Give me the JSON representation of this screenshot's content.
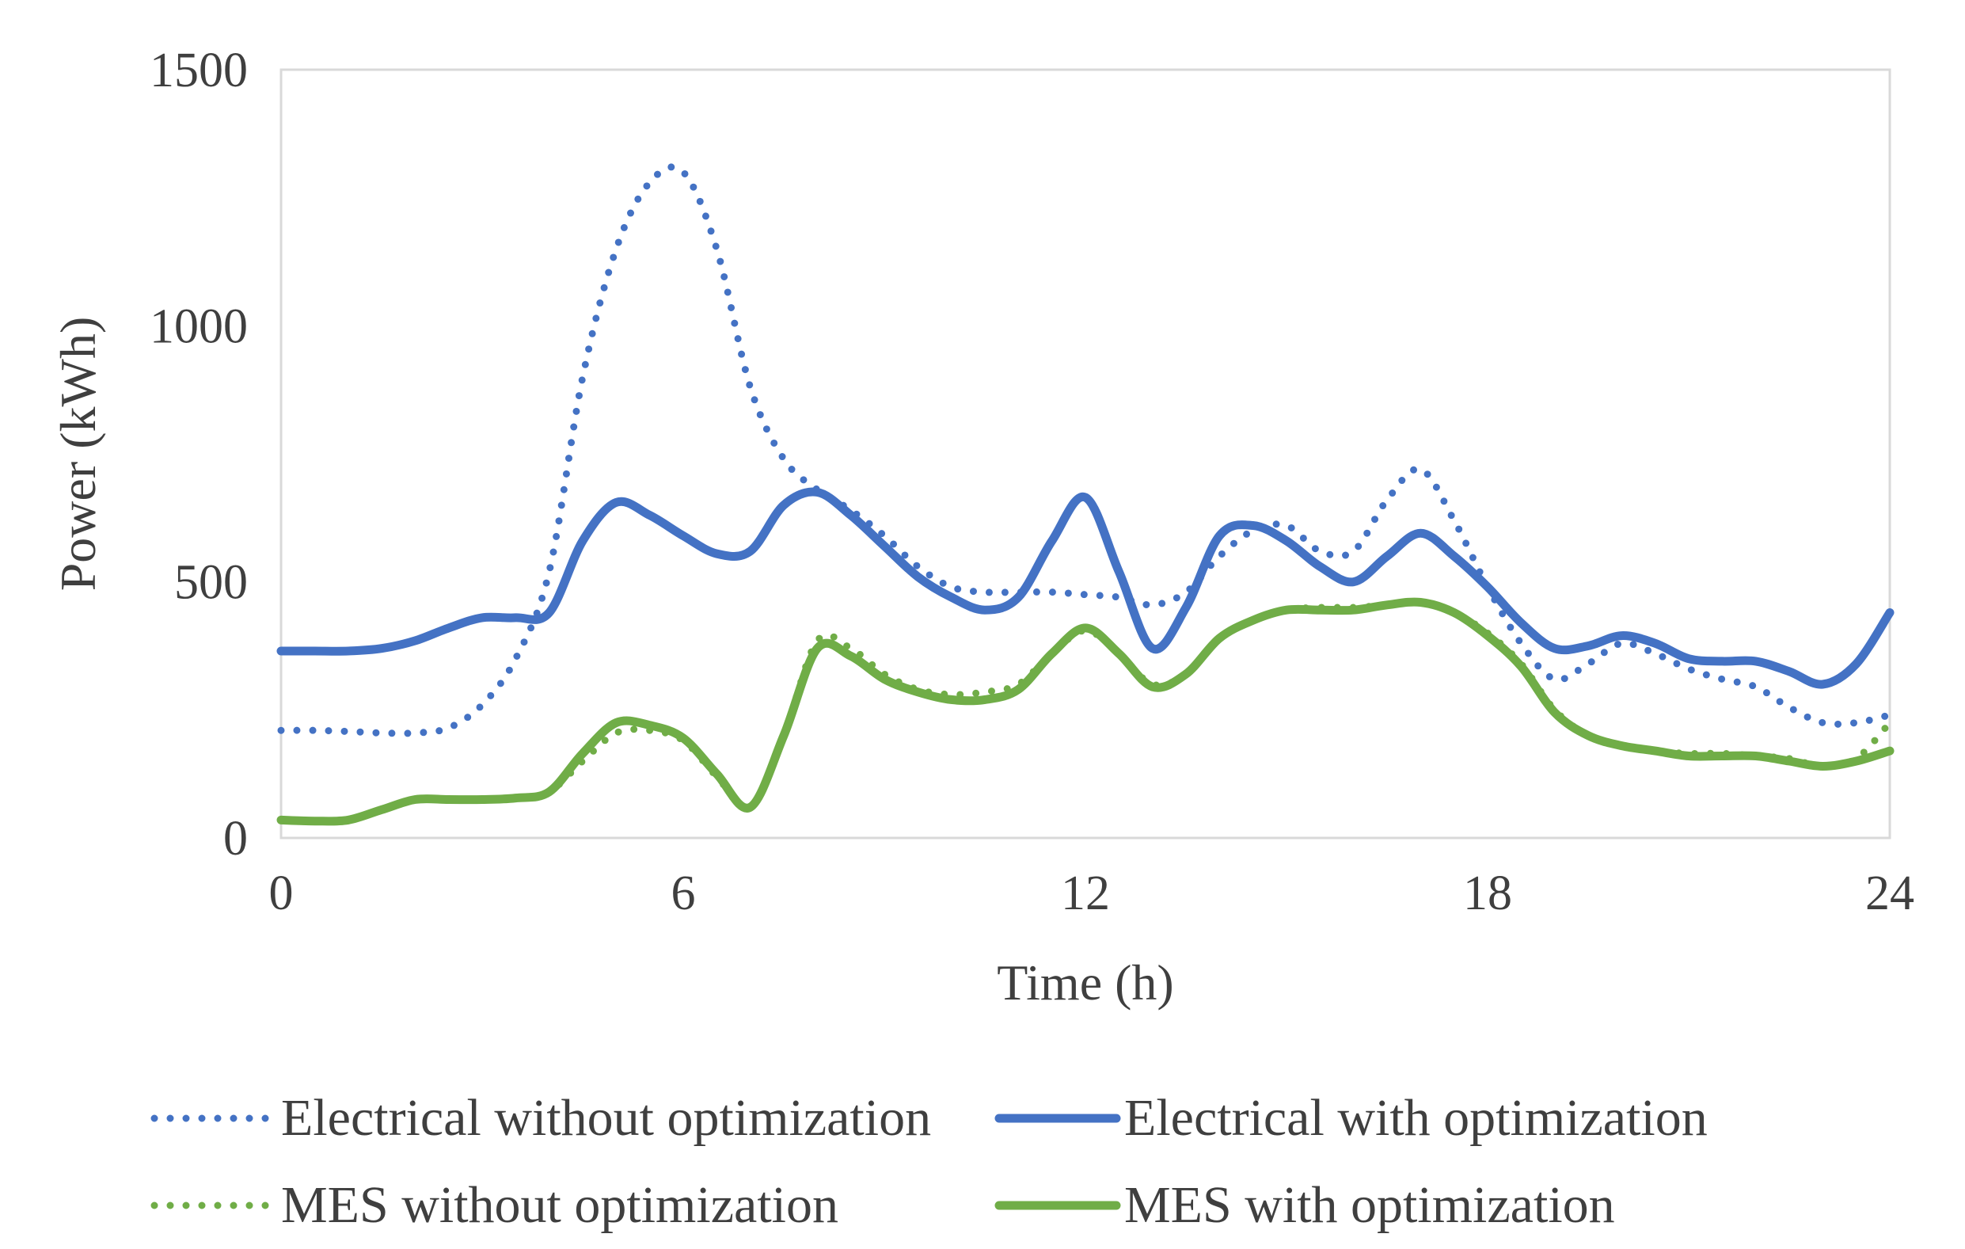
{
  "chart_data": {
    "type": "line",
    "title": "",
    "xlabel": "Time (h)",
    "ylabel": "Power (kWh)",
    "xlim": [
      0,
      24
    ],
    "ylim": [
      0,
      1500
    ],
    "xticks": [
      0,
      6,
      12,
      18,
      24
    ],
    "yticks": [
      0,
      500,
      1000,
      1500
    ],
    "grid": false,
    "legend_position": "bottom",
    "colors": {
      "electrical": "#4472c4",
      "mes": "#70ad47",
      "text": "#3f3f3f",
      "frame": "#d9d9d9"
    },
    "series": [
      {
        "name": "Electrical without optimization",
        "style": "dotted",
        "color": "#4472c4",
        "x": [
          0,
          0.5,
          1,
          1.5,
          2,
          2.5,
          3,
          3.5,
          4,
          4.5,
          5,
          5.5,
          6,
          6.5,
          7,
          7.5,
          8,
          8.5,
          9,
          9.5,
          10,
          10.5,
          11,
          11.5,
          12,
          12.5,
          13,
          13.5,
          14,
          14.5,
          15,
          15.5,
          16,
          16.5,
          17,
          17.5,
          18,
          18.5,
          19,
          19.5,
          20,
          20.5,
          21,
          21.5,
          22,
          22.5,
          23,
          23.5,
          24
        ],
        "values": [
          210,
          210,
          208,
          205,
          205,
          215,
          260,
          350,
          520,
          900,
          1150,
          1280,
          1300,
          1150,
          880,
          740,
          680,
          640,
          590,
          530,
          490,
          480,
          480,
          480,
          475,
          470,
          455,
          480,
          550,
          600,
          610,
          560,
          560,
          660,
          720,
          620,
          490,
          380,
          310,
          340,
          380,
          360,
          330,
          310,
          295,
          255,
          225,
          225,
          240
        ]
      },
      {
        "name": "Electrical with optimization",
        "style": "solid",
        "color": "#4472c4",
        "x": [
          0,
          0.5,
          1,
          1.5,
          2,
          2.5,
          3,
          3.5,
          4,
          4.5,
          5,
          5.5,
          6,
          6.5,
          7,
          7.5,
          8,
          8.5,
          9,
          9.5,
          10,
          10.5,
          11,
          11.5,
          12,
          12.5,
          13,
          13.5,
          14,
          14.5,
          15,
          15.5,
          16,
          16.5,
          17,
          17.5,
          18,
          18.5,
          19,
          19.5,
          20,
          20.5,
          21,
          21.5,
          22,
          22.5,
          23,
          23.5,
          24
        ],
        "values": [
          365,
          365,
          365,
          370,
          385,
          410,
          430,
          430,
          440,
          580,
          655,
          630,
          590,
          555,
          560,
          650,
          675,
          630,
          570,
          510,
          470,
          445,
          470,
          580,
          665,
          520,
          370,
          450,
          590,
          610,
          580,
          530,
          500,
          550,
          595,
          550,
          490,
          420,
          370,
          375,
          395,
          380,
          350,
          345,
          345,
          325,
          300,
          340,
          440
        ]
      },
      {
        "name": "MES without optimization",
        "style": "dotted",
        "color": "#70ad47",
        "x": [
          0,
          0.5,
          1,
          1.5,
          2,
          2.5,
          3,
          3.5,
          4,
          4.5,
          5,
          5.5,
          6,
          6.5,
          7,
          7.5,
          8,
          8.5,
          9,
          9.5,
          10,
          10.5,
          11,
          11.5,
          12,
          12.5,
          13,
          13.5,
          14,
          14.5,
          15,
          15.5,
          16,
          16.5,
          17,
          17.5,
          18,
          18.5,
          19,
          19.5,
          20,
          20.5,
          21,
          21.5,
          22,
          22.5,
          23,
          23.5,
          24
        ],
        "values": [
          35,
          33,
          35,
          55,
          75,
          75,
          75,
          78,
          90,
          150,
          205,
          210,
          190,
          120,
          60,
          200,
          385,
          370,
          320,
          290,
          280,
          285,
          300,
          360,
          405,
          360,
          300,
          320,
          390,
          425,
          445,
          450,
          450,
          455,
          460,
          440,
          400,
          340,
          250,
          200,
          180,
          170,
          165,
          165,
          160,
          155,
          140,
          155,
          225
        ]
      },
      {
        "name": "MES with optimization",
        "style": "solid",
        "color": "#70ad47",
        "x": [
          0,
          0.5,
          1,
          1.5,
          2,
          2.5,
          3,
          3.5,
          4,
          4.5,
          5,
          5.5,
          6,
          6.5,
          7,
          7.5,
          8,
          8.5,
          9,
          9.5,
          10,
          10.5,
          11,
          11.5,
          12,
          12.5,
          13,
          13.5,
          14,
          14.5,
          15,
          15.5,
          16,
          16.5,
          17,
          17.5,
          18,
          18.5,
          19,
          19.5,
          20,
          20.5,
          21,
          21.5,
          22,
          22.5,
          23,
          23.5,
          24
        ],
        "values": [
          35,
          33,
          35,
          55,
          75,
          75,
          75,
          78,
          90,
          165,
          225,
          220,
          195,
          125,
          60,
          200,
          370,
          355,
          310,
          285,
          270,
          270,
          290,
          360,
          410,
          360,
          295,
          320,
          390,
          425,
          445,
          445,
          445,
          455,
          460,
          440,
          395,
          335,
          245,
          200,
          180,
          170,
          160,
          160,
          160,
          150,
          140,
          150,
          170
        ]
      }
    ]
  }
}
